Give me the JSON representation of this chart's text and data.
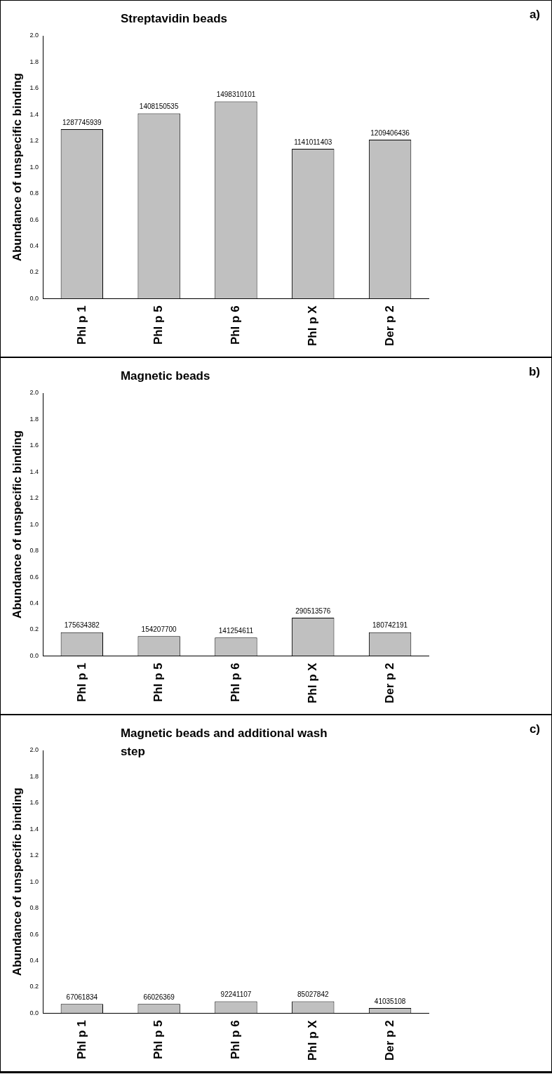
{
  "chart_data": [
    {
      "type": "bar",
      "title": "Streptavidin beads",
      "ylabel": "Abundance of unspecific binding",
      "annotations": [
        "a)",
        {
          "text": "1287745939",
          "x": "Phl p 1",
          "y": 1.29
        },
        {
          "text": "1408150535",
          "x": "Phl p 5",
          "y": 1.41
        },
        {
          "text": "1498310101",
          "x": "Phl p 6",
          "y": 1.5
        },
        {
          "text": "1141011403",
          "x": "Phl p X",
          "y": 1.14
        },
        {
          "text": "1209406436",
          "x": "Der p 2",
          "y": 1.21
        }
      ],
      "categories": [
        "Phl p 1",
        "Phl p 5",
        "Phl p 6",
        "Phl p X",
        "Der p 2"
      ],
      "values": [
        1.29,
        1.41,
        1.5,
        1.14,
        1.21
      ],
      "color": "#c0c0c0",
      "ylim": [
        0,
        2
      ],
      "yticks": [
        {
          "value": 0,
          "label": "0.0"
        },
        {
          "value": 0.2,
          "label": "0.2"
        },
        {
          "value": 0.4,
          "label": "0.4"
        },
        {
          "value": 0.6,
          "label": "0.6"
        },
        {
          "value": 0.8,
          "label": "0.8"
        },
        {
          "value": 1,
          "label": "1.0"
        },
        {
          "value": 1.2,
          "label": "1.2"
        },
        {
          "value": 1.4,
          "label": "1.4"
        },
        {
          "value": 1.6,
          "label": "1.6"
        },
        {
          "value": 1.8,
          "label": "1.8"
        },
        {
          "value": 2,
          "label": "2.0"
        }
      ],
      "grid": false,
      "legend": false
    },
    {
      "type": "bar",
      "title": "Magnetic beads",
      "ylabel": "Abundance of unspecific binding",
      "annotations": [
        "b)",
        {
          "text": "175634382",
          "x": "Phl p 1",
          "y": 0.18
        },
        {
          "text": "154207700",
          "x": "Phl p 5",
          "y": 0.15
        },
        {
          "text": "141254611",
          "x": "Phl p 6",
          "y": 0.14
        },
        {
          "text": "290513576",
          "x": "Phl p X",
          "y": 0.29
        },
        {
          "text": "180742191",
          "x": "Der p 2",
          "y": 0.18
        }
      ],
      "categories": [
        "Phl p 1",
        "Phl p 5",
        "Phl p 6",
        "Phl p X",
        "Der p 2"
      ],
      "values": [
        0.18,
        0.15,
        0.14,
        0.29,
        0.18
      ],
      "color": "#c0c0c0",
      "ylim": [
        0,
        2
      ],
      "yticks": [
        {
          "value": 0,
          "label": "0.0"
        },
        {
          "value": 0.2,
          "label": "0.2"
        },
        {
          "value": 0.4,
          "label": "0.4"
        },
        {
          "value": 0.6,
          "label": "0.6"
        },
        {
          "value": 0.8,
          "label": "0.8"
        },
        {
          "value": 1,
          "label": "1.0"
        },
        {
          "value": 1.2,
          "label": "1.2"
        },
        {
          "value": 1.4,
          "label": "1.4"
        },
        {
          "value": 1.6,
          "label": "1.6"
        },
        {
          "value": 1.8,
          "label": "1.8"
        },
        {
          "value": 2,
          "label": "2.0"
        }
      ],
      "grid": false,
      "legend": false
    },
    {
      "type": "bar",
      "title": "Magnetic beads and additional wash step",
      "ylabel": "Abundance of unspecific binding",
      "annotations": [
        "c)",
        {
          "text": "67061834",
          "x": "Phl p 1",
          "y": 0.07
        },
        {
          "text": "66026369",
          "x": "Phl p 5",
          "y": 0.07
        },
        {
          "text": "92241107",
          "x": "Phl p 6",
          "y": 0.09
        },
        {
          "text": "85027842",
          "x": "Phl p X",
          "y": 0.09
        },
        {
          "text": "41035108",
          "x": "Der p 2",
          "y": 0.04
        }
      ],
      "categories": [
        "Phl p 1",
        "Phl p 5",
        "Phl p 6",
        "Phl p X",
        "Der p 2"
      ],
      "values": [
        0.07,
        0.07,
        0.09,
        0.09,
        0.04
      ],
      "color": "#c0c0c0",
      "ylim": [
        0,
        2
      ],
      "yticks": [
        {
          "value": 0,
          "label": "0.0"
        },
        {
          "value": 0.2,
          "label": "0.2"
        },
        {
          "value": 0.4,
          "label": "0.4"
        },
        {
          "value": 0.6,
          "label": "0.6"
        },
        {
          "value": 0.8,
          "label": "0.8"
        },
        {
          "value": 1,
          "label": "1.0"
        },
        {
          "value": 1.2,
          "label": "1.2"
        },
        {
          "value": 1.4,
          "label": "1.4"
        },
        {
          "value": 1.6,
          "label": "1.6"
        },
        {
          "value": 1.8,
          "label": "1.8"
        },
        {
          "value": 2,
          "label": "2.0"
        }
      ],
      "grid": false,
      "legend": false
    }
  ]
}
